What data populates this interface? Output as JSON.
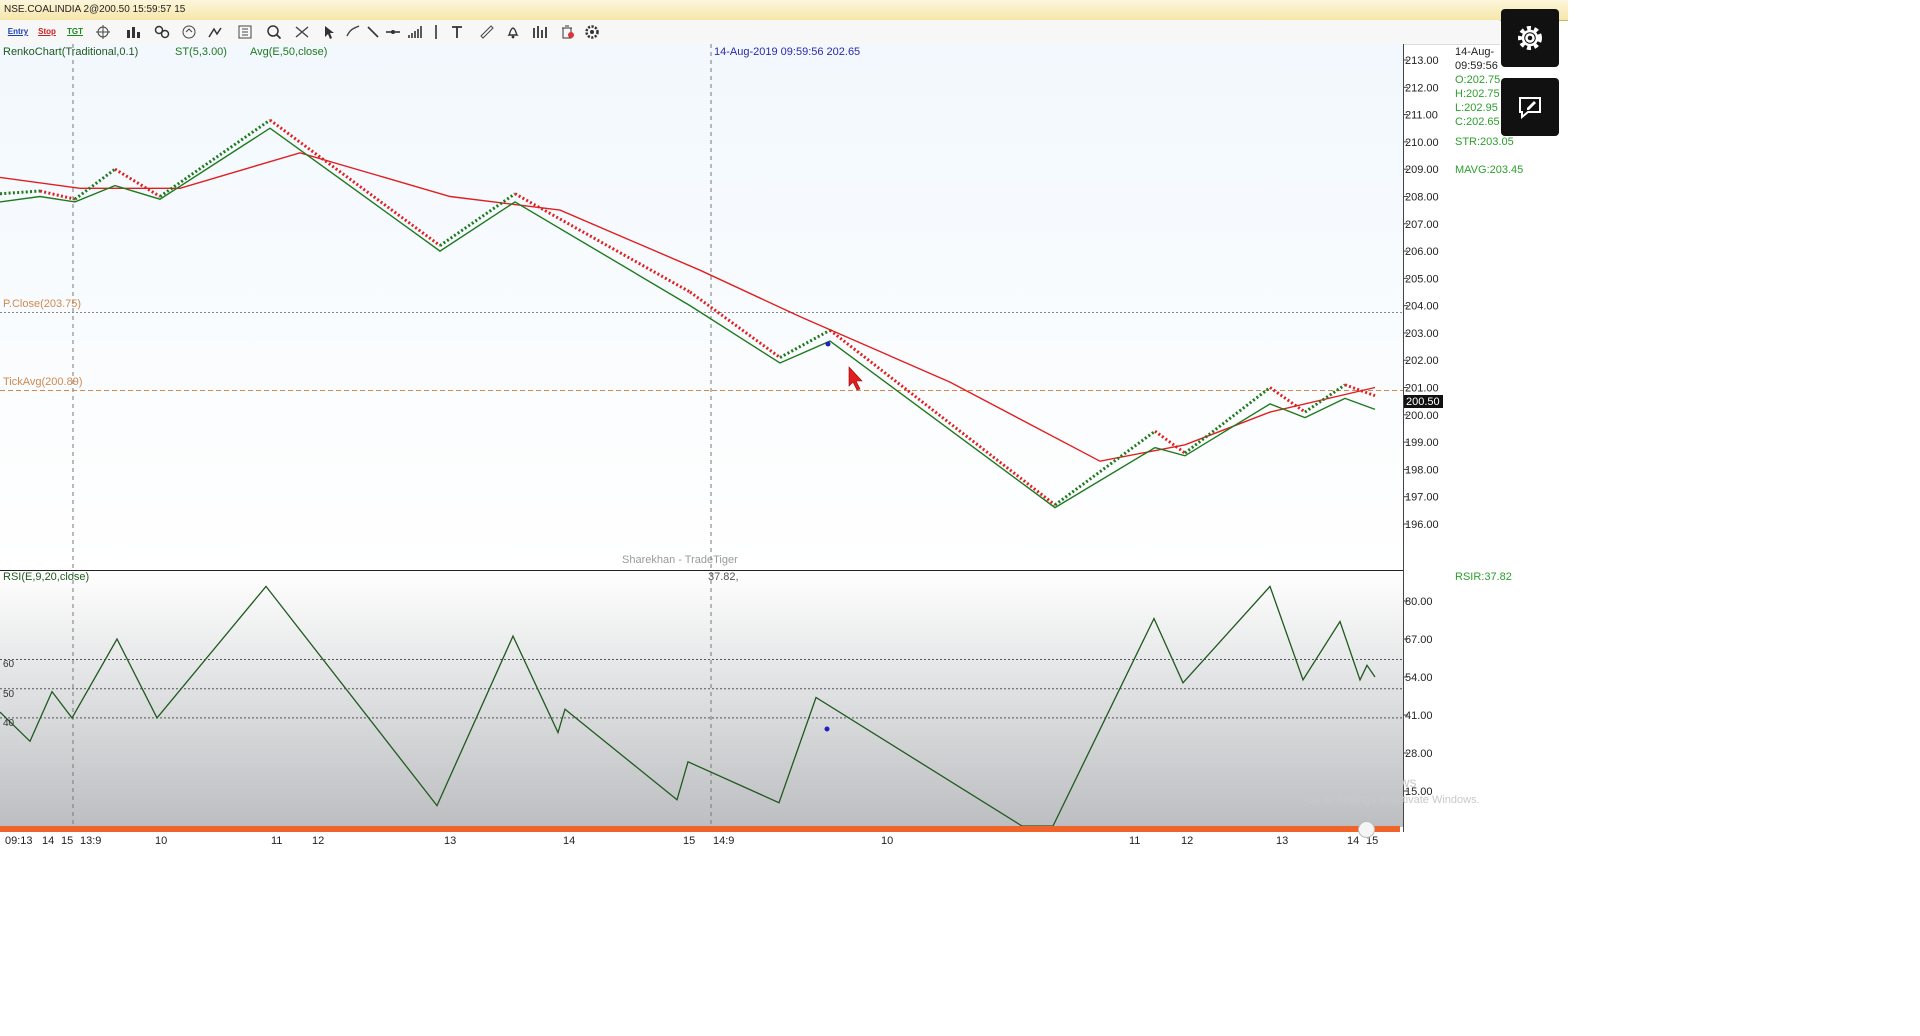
{
  "window": {
    "title": "NSE.COALINDIA 2@200.50 15:59:57 15"
  },
  "toolbar": {
    "entry_label": "Entry",
    "stop_label": "Stop",
    "tgt_label": "TGT"
  },
  "legend": {
    "chart_type": "RenkoChart(Traditional,0.1)",
    "supertrend": "ST(5,3.00)",
    "average": "Avg(E,50,close)",
    "crosshair": "14-Aug-2019 09:59:56 202.65",
    "p_close": "P.Close(203.75)",
    "tick_avg": "TickAvg(200.89)",
    "brand": "Sharekhan - TradeTiger",
    "rsi": "RSI(E,9,20,close)",
    "rsi_crosshair": "37.82,"
  },
  "side_panel": {
    "date": "14-Aug-",
    "time": "09:59:56",
    "open": "O:202.75",
    "high": "H:202.75",
    "low": "L:202.95",
    "close": "C:202.65",
    "str": "STR:203.05",
    "mavg": "MAVG:203.45",
    "rsir": "RSIR:37.82"
  },
  "price_label": "200.50",
  "watermark": {
    "line1": "Activate Windows",
    "line2": "Go to Settings to activate Windows."
  },
  "colors": {
    "up": "#1f7a1f",
    "down": "#e02020",
    "avg": "#e02020",
    "rsi": "#1f5a1f",
    "pclose": "#d08a50",
    "accent": "#f0642c"
  },
  "chart_data": [
    {
      "type": "line",
      "panel": "price",
      "ylim": [
        195.5,
        213.8
      ],
      "yticks": [
        "213.00",
        "212.00",
        "211.00",
        "210.00",
        "209.00",
        "208.00",
        "207.00",
        "206.00",
        "205.00",
        "204.00",
        "203.00",
        "202.00",
        "201.00",
        "200.00",
        "199.00",
        "198.00",
        "197.00",
        "196.00"
      ],
      "hlines": [
        203.75,
        200.89
      ],
      "x": [
        0,
        40,
        75,
        115,
        160,
        270,
        440,
        515,
        690,
        780,
        830,
        1055,
        1155,
        1185,
        1270,
        1305,
        1345,
        1375
      ],
      "series": [
        {
          "name": "RenkoChart(Traditional,0.1)",
          "values": [
            208.1,
            208.2,
            207.9,
            209.0,
            208.0,
            210.8,
            206.2,
            208.1,
            204.5,
            202.1,
            203.1,
            196.7,
            199.4,
            198.6,
            201.0,
            200.1,
            201.1,
            200.7
          ]
        },
        {
          "name": "ST(5,3.00)",
          "values": [
            207.8,
            208.0,
            207.8,
            208.4,
            207.9,
            210.5,
            206.0,
            207.8,
            204.0,
            201.9,
            202.7,
            196.6,
            198.8,
            198.5,
            200.4,
            199.9,
            200.6,
            200.2
          ]
        },
        {
          "name": "Avg(E,50,close)",
          "x": [
            0,
            80,
            180,
            300,
            450,
            560,
            700,
            800,
            950,
            1100,
            1185,
            1270,
            1375
          ],
          "values": [
            208.7,
            208.3,
            208.3,
            209.6,
            208.0,
            207.5,
            205.3,
            203.6,
            201.2,
            198.3,
            198.9,
            200.1,
            201.0
          ]
        }
      ]
    },
    {
      "type": "line",
      "panel": "rsi",
      "title": "RSI(E,9,20,close)",
      "ylim": [
        5,
        88
      ],
      "yticks": [
        "80.00",
        "67.00",
        "54.00",
        "41.00",
        "28.00",
        "15.00"
      ],
      "hlines": [
        60,
        50,
        40
      ],
      "x": [
        0,
        30,
        52,
        72,
        117,
        157,
        266,
        437,
        513,
        558,
        565,
        677,
        688,
        779,
        816,
        1022,
        1053,
        1154,
        1183,
        1270,
        1303,
        1340,
        1360,
        1367,
        1375
      ],
      "values": [
        42,
        32,
        49,
        40,
        67,
        40,
        85,
        10,
        68,
        35,
        43,
        12,
        25,
        11,
        47,
        0,
        1,
        74,
        52,
        85,
        53,
        73,
        53,
        58,
        54
      ]
    }
  ],
  "x_axis": [
    "09:13",
    "14",
    "15",
    "13:9",
    "10",
    "11",
    "12",
    "13",
    "14",
    "15",
    "14:9",
    "10",
    "11",
    "12",
    "13",
    "14",
    "15"
  ]
}
